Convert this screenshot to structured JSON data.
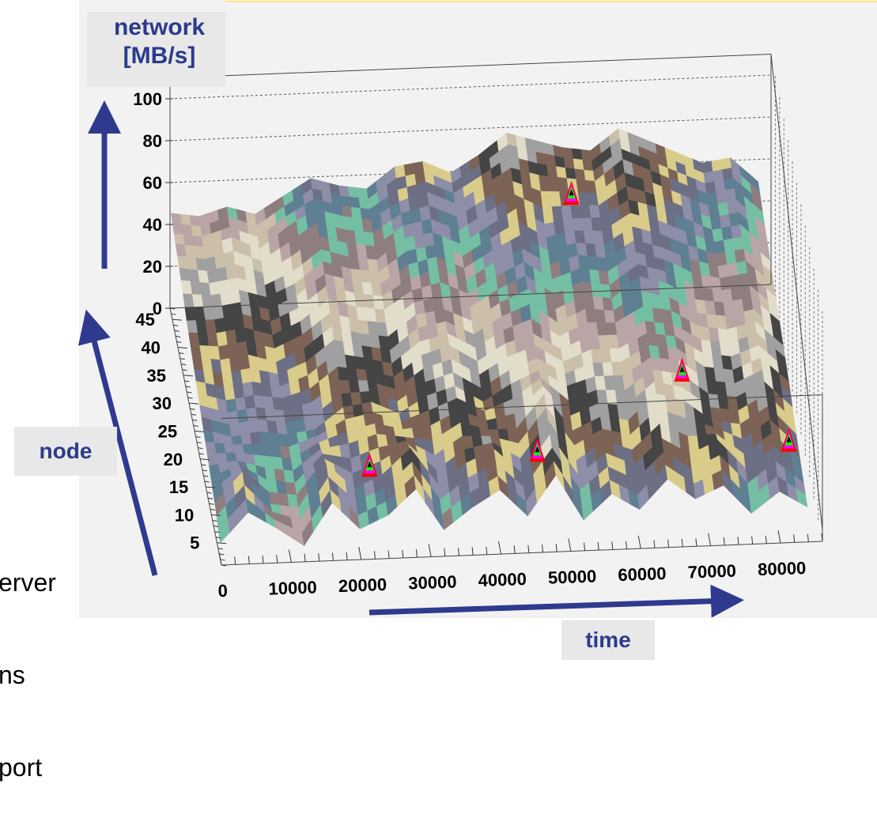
{
  "labels": {
    "y_axis": [
      "network",
      "[MB/s]"
    ],
    "z_axis": "node",
    "x_axis": "time"
  },
  "side_text": [
    "erver",
    "ns",
    "port"
  ],
  "colors": {
    "arrow": "#2f3a8f",
    "plot_bg": "#f2f2f2",
    "label_text": "#2b3a8c",
    "label_bg": "#e8e8e8",
    "palette": [
      "#e2dccb",
      "#cbbfa9",
      "#b9a5a5",
      "#8f7e80",
      "#74bfa3",
      "#5f7f93",
      "#8e8ea8",
      "#6d6f84",
      "#d9cc8a",
      "#7d6356",
      "#454545",
      "#a0a0a0"
    ],
    "peak_palette": [
      "#ff0000",
      "#ff00ff",
      "#00ff00",
      "#000000"
    ]
  },
  "chart_data": {
    "type": "surface",
    "xlabel": "time",
    "ylabel": "network [MB/s]",
    "zlabel": "node",
    "x_ticks": [
      "0",
      "10000",
      "20000",
      "30000",
      "40000",
      "50000",
      "60000",
      "70000",
      "80000"
    ],
    "y_ticks": [
      "0",
      "20",
      "40",
      "60",
      "80",
      "100"
    ],
    "z_ticks": [
      "5",
      "10",
      "15",
      "20",
      "25",
      "30",
      "35",
      "40",
      "45"
    ],
    "xlim": [
      0,
      86000
    ],
    "ylim": [
      0,
      110
    ],
    "zlim": [
      1,
      47
    ],
    "grid": true,
    "x": [
      0,
      4000,
      8000,
      12000,
      16000,
      20000,
      24000,
      28000,
      32000,
      36000,
      40000,
      44000,
      48000,
      52000,
      56000,
      60000,
      64000,
      68000,
      72000,
      76000,
      80000,
      84000
    ],
    "z": [
      2,
      7,
      12,
      17,
      22,
      27,
      32,
      37,
      42,
      46
    ],
    "values": [
      [
        8,
        22,
        14,
        5,
        25,
        12,
        18,
        30,
        10,
        20,
        28,
        15,
        34,
        12,
        24,
        16,
        30,
        20,
        26,
        12,
        22,
        14
      ],
      [
        14,
        28,
        12,
        10,
        30,
        18,
        24,
        36,
        18,
        28,
        34,
        22,
        40,
        20,
        30,
        24,
        36,
        28,
        34,
        20,
        30,
        18
      ],
      [
        18,
        20,
        16,
        14,
        24,
        26,
        30,
        28,
        26,
        34,
        30,
        30,
        46,
        28,
        34,
        32,
        44,
        40,
        30,
        28,
        36,
        22
      ],
      [
        22,
        18,
        20,
        18,
        20,
        30,
        32,
        26,
        34,
        38,
        30,
        38,
        44,
        36,
        40,
        40,
        48,
        46,
        36,
        34,
        40,
        28
      ],
      [
        26,
        22,
        24,
        22,
        26,
        36,
        34,
        30,
        40,
        44,
        36,
        44,
        48,
        40,
        46,
        46,
        52,
        50,
        42,
        40,
        44,
        32
      ],
      [
        30,
        28,
        30,
        26,
        32,
        42,
        38,
        36,
        46,
        48,
        42,
        50,
        56,
        46,
        52,
        50,
        60,
        56,
        48,
        46,
        48,
        36
      ],
      [
        34,
        34,
        36,
        32,
        38,
        48,
        44,
        42,
        50,
        54,
        48,
        56,
        62,
        54,
        58,
        56,
        64,
        60,
        54,
        50,
        52,
        40
      ],
      [
        40,
        38,
        40,
        36,
        42,
        52,
        48,
        46,
        56,
        58,
        52,
        60,
        68,
        60,
        62,
        62,
        70,
        66,
        60,
        54,
        56,
        44
      ],
      [
        44,
        42,
        46,
        40,
        50,
        58,
        54,
        52,
        60,
        64,
        58,
        66,
        74,
        70,
        68,
        66,
        76,
        70,
        64,
        58,
        60,
        48
      ],
      [
        48,
        46,
        50,
        46,
        54,
        62,
        58,
        56,
        66,
        68,
        62,
        70,
        80,
        76,
        72,
        70,
        80,
        74,
        68,
        62,
        64,
        52
      ]
    ],
    "peaks": [
      {
        "x": 56000,
        "node": 38,
        "value": 72
      },
      {
        "x": 68000,
        "node": 14,
        "value": 50
      },
      {
        "x": 46000,
        "node": 6,
        "value": 36
      },
      {
        "x": 22000,
        "node": 6,
        "value": 32
      },
      {
        "x": 82000,
        "node": 6,
        "value": 36
      }
    ]
  }
}
